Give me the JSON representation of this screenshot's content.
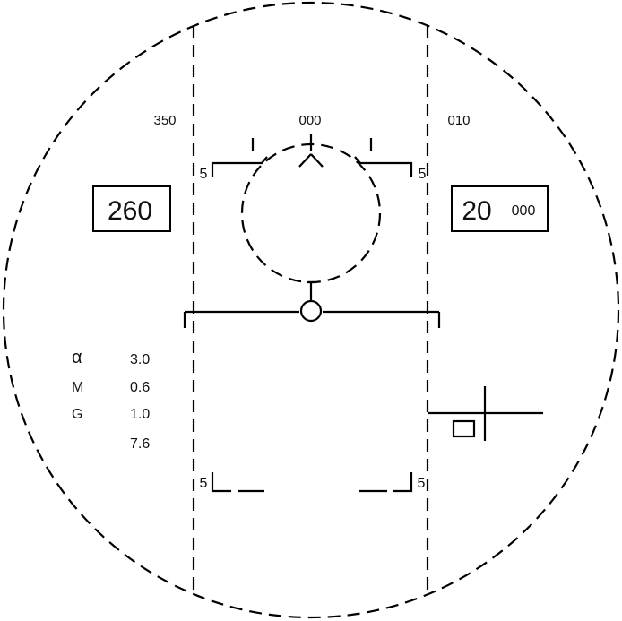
{
  "heading_scale": {
    "left": "350",
    "center": "000",
    "right": "010"
  },
  "airspeed": "260",
  "altitude": {
    "thousands": "20",
    "hundreds": "000"
  },
  "pitch_ladder": {
    "upper_left": "5",
    "upper_right": "5",
    "lower_left": "5",
    "lower_right": "5"
  },
  "flight_data": {
    "alpha_label": "α",
    "alpha_value": "3.0",
    "mach_label": "M",
    "mach_value": "0.6",
    "g_label": "G",
    "g_value": "1.0",
    "extra_value": "7.6"
  }
}
